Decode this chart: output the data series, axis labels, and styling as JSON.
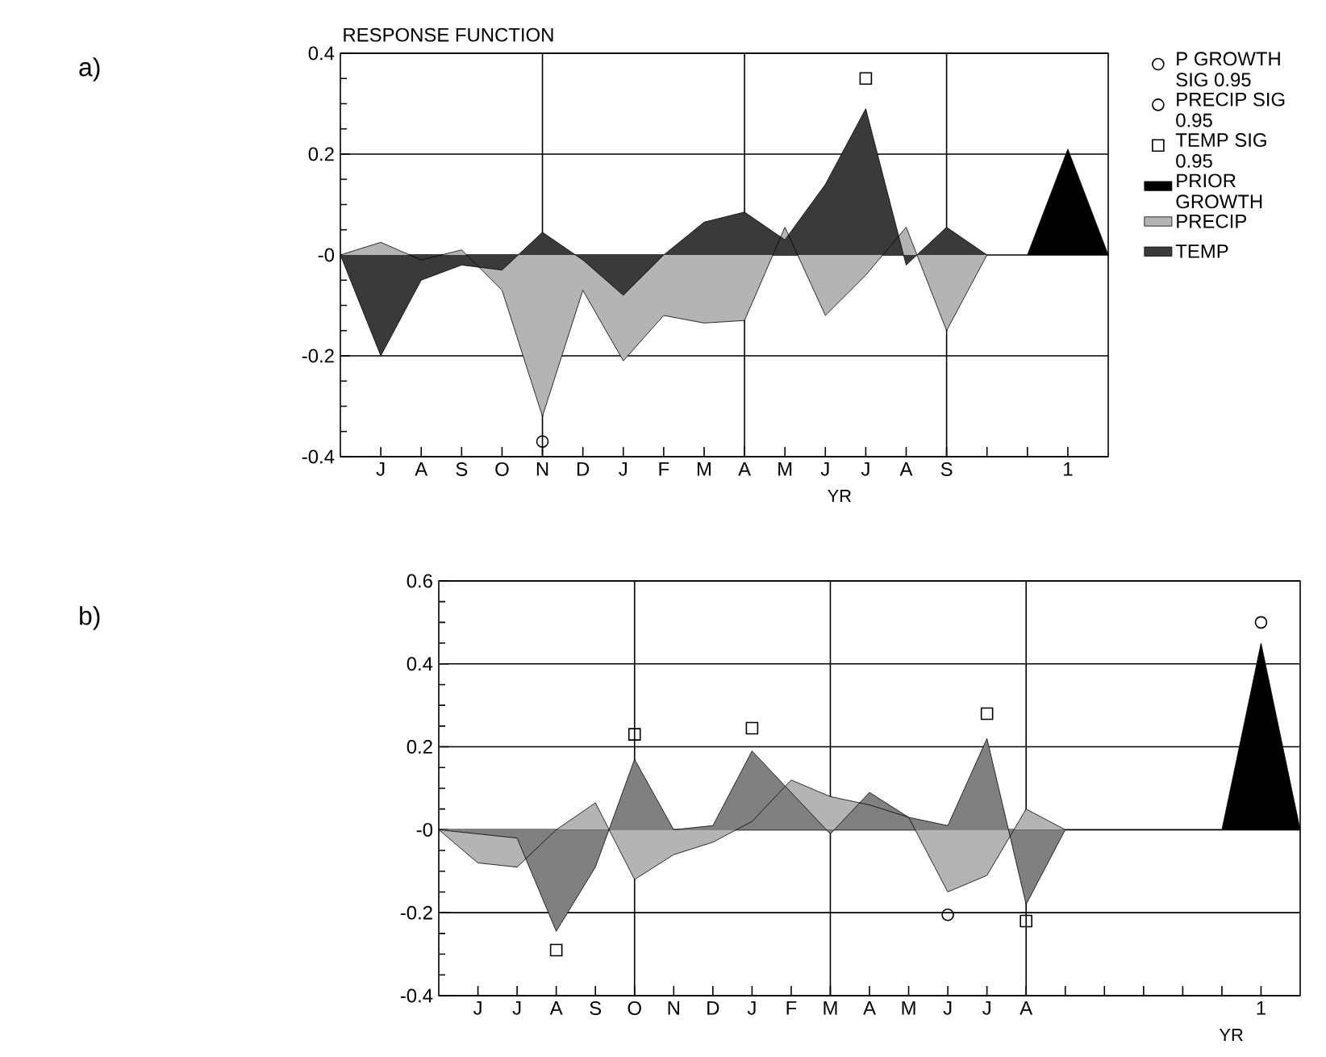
{
  "chart_data": [
    {
      "type": "area",
      "title": "RESPONSE FUNCTION",
      "xlabel": "YR",
      "annotations": [
        "a)"
      ],
      "categories": [
        null,
        "J",
        "A",
        "S",
        "O",
        "N",
        "D",
        "J",
        "F",
        "M",
        "A",
        "M",
        "J",
        "J",
        "A",
        "S",
        null,
        null,
        "1",
        null
      ],
      "ylim": [
        -0.4,
        0.4
      ],
      "yticks": [
        -0.4,
        -0.2,
        {
          "value": 0,
          "label": "-0"
        },
        0.2,
        0.4
      ],
      "grid": true,
      "legend": "right",
      "series": [
        {
          "name": "P GROWTH SIG 0.95",
          "type": "scatter",
          "marker": "circle",
          "color": "#000000",
          "values": [
            null,
            null,
            null,
            null,
            null,
            null,
            null,
            null,
            null,
            null,
            null,
            null,
            null,
            null,
            null,
            null,
            null,
            null,
            null,
            null
          ]
        },
        {
          "name": "PRECIP SIG 0.95",
          "type": "scatter",
          "marker": "circle",
          "color": "#000000",
          "values": [
            null,
            null,
            null,
            null,
            null,
            -0.37,
            null,
            null,
            null,
            null,
            null,
            null,
            null,
            null,
            null,
            null,
            null,
            null,
            null,
            null
          ]
        },
        {
          "name": "TEMP SIG 0.95",
          "type": "scatter",
          "marker": "square",
          "color": "#000000",
          "values": [
            null,
            null,
            null,
            null,
            null,
            null,
            null,
            null,
            null,
            null,
            null,
            null,
            null,
            0.35,
            null,
            null,
            null,
            null,
            null,
            null
          ]
        },
        {
          "name": "PRIOR GROWTH",
          "color": "#000000",
          "values": [
            null,
            null,
            null,
            null,
            null,
            null,
            null,
            null,
            null,
            null,
            null,
            null,
            null,
            null,
            null,
            null,
            null,
            0,
            0.21,
            0
          ]
        },
        {
          "name": "PRECIP",
          "color": "#b4b4b4",
          "values": [
            0,
            0.025,
            -0.01,
            0.01,
            -0.07,
            -0.32,
            -0.07,
            -0.21,
            -0.12,
            -0.135,
            -0.13,
            0.055,
            -0.12,
            -0.04,
            0.055,
            -0.15,
            0,
            null,
            null,
            null
          ]
        },
        {
          "name": "TEMP",
          "color": "#3a3a3a",
          "values": [
            0,
            -0.2,
            -0.05,
            -0.02,
            -0.03,
            0.045,
            -0.01,
            -0.08,
            0,
            0.065,
            0.085,
            0.03,
            0.14,
            0.29,
            -0.02,
            0.055,
            0,
            null,
            null,
            null
          ]
        }
      ]
    },
    {
      "type": "area",
      "xlabel": "YR",
      "annotations": [
        "b)"
      ],
      "categories": [
        null,
        "J",
        "J",
        "A",
        "S",
        "O",
        "N",
        "D",
        "J",
        "F",
        "M",
        "A",
        "M",
        "J",
        "J",
        "A",
        null,
        null,
        null,
        null,
        null,
        "1",
        null
      ],
      "ylim": [
        -0.4,
        0.6
      ],
      "yticks": [
        -0.4,
        -0.2,
        {
          "value": 0,
          "label": "-0"
        },
        0.2,
        0.4,
        0.6
      ],
      "grid": true,
      "series": [
        {
          "type": "scatter",
          "marker": "circle",
          "color": "#000000",
          "values": [
            null,
            null,
            null,
            null,
            null,
            null,
            null,
            null,
            null,
            null,
            null,
            null,
            null,
            null,
            null,
            null,
            null,
            null,
            null,
            null,
            null,
            0.5,
            null
          ]
        },
        {
          "type": "scatter",
          "marker": "circle",
          "color": "#000000",
          "values": [
            null,
            null,
            null,
            null,
            null,
            null,
            null,
            null,
            null,
            null,
            null,
            null,
            null,
            -0.205,
            null,
            null,
            null,
            null,
            null,
            null,
            null,
            null,
            null
          ]
        },
        {
          "type": "scatter",
          "marker": "square",
          "color": "#000000",
          "values": [
            null,
            null,
            null,
            -0.29,
            null,
            0.23,
            null,
            null,
            0.245,
            null,
            null,
            null,
            null,
            null,
            0.28,
            -0.22,
            null,
            null,
            null,
            null,
            null,
            null,
            null
          ]
        },
        {
          "color": "#000000",
          "values": [
            null,
            null,
            null,
            null,
            null,
            null,
            null,
            null,
            null,
            null,
            null,
            null,
            null,
            null,
            null,
            null,
            null,
            null,
            null,
            null,
            0,
            0.45,
            0
          ]
        },
        {
          "color": "#b4b4b4",
          "values": [
            0,
            -0.08,
            -0.09,
            0,
            0.065,
            -0.12,
            -0.06,
            -0.03,
            0.02,
            0.12,
            0.08,
            0.06,
            0.03,
            -0.15,
            -0.11,
            0.05,
            0,
            null,
            null,
            null,
            null,
            null,
            null
          ]
        },
        {
          "color": "#808080",
          "values": [
            0,
            -0.01,
            -0.02,
            -0.245,
            -0.09,
            0.17,
            0,
            0.01,
            0.19,
            0.09,
            -0.01,
            0.09,
            0.03,
            0.01,
            0.22,
            -0.18,
            0,
            null,
            null,
            null,
            null,
            null,
            null
          ]
        }
      ]
    }
  ]
}
